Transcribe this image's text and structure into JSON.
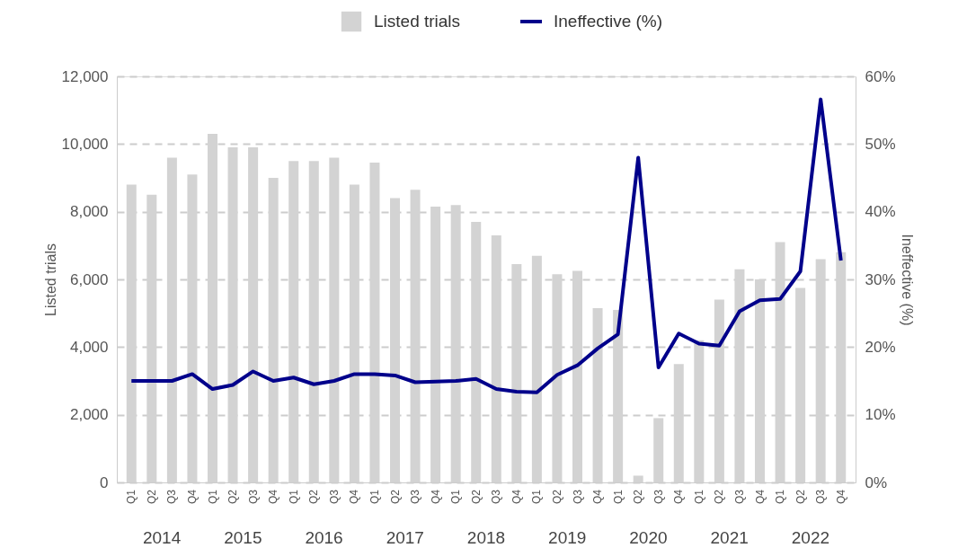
{
  "chart_data": {
    "type": "bar",
    "categories": [
      "Q1",
      "Q2",
      "Q3",
      "Q4",
      "Q1",
      "Q2",
      "Q3",
      "Q4",
      "Q1",
      "Q2",
      "Q3",
      "Q4",
      "Q1",
      "Q2",
      "Q3",
      "Q4",
      "Q1",
      "Q2",
      "Q3",
      "Q4",
      "Q1",
      "Q2",
      "Q3",
      "Q4",
      "Q1",
      "Q2",
      "Q3",
      "Q4",
      "Q1",
      "Q2",
      "Q3",
      "Q4",
      "Q1",
      "Q2",
      "Q3",
      "Q4"
    ],
    "series": [
      {
        "name": "Listed trials",
        "color": "#d3d3d3",
        "values": [
          8800,
          8500,
          9600,
          9100,
          10300,
          9900,
          9900,
          9000,
          9500,
          9500,
          9600,
          8800,
          9450,
          8400,
          8650,
          8150,
          8200,
          7700,
          7300,
          6450,
          6700,
          6150,
          6250,
          5150,
          5100,
          200,
          1900,
          3500,
          4200,
          5400,
          6300,
          6000,
          7100,
          5750,
          6600,
          6800
        ]
      },
      {
        "name": "Ineffective (%)",
        "type": "line",
        "axis": "y2",
        "color": "#00008b",
        "values": [
          15,
          15,
          15,
          16,
          13.8,
          14.4,
          16.4,
          15,
          15.5,
          14.5,
          15,
          16,
          16,
          15.8,
          14.8,
          14.9,
          15,
          15.3,
          13.8,
          13.4,
          13.3,
          15.9,
          17.3,
          19.8,
          21.9,
          48,
          17,
          22,
          20.5,
          20.2,
          25.3,
          26.9,
          27.1,
          31.2,
          56.6,
          32.8
        ]
      }
    ],
    "ylabel": "Listed trials",
    "y2label": "Ineffective (%)",
    "ylim": [
      0,
      12000
    ],
    "yticks": [
      0,
      {
        "value": 2000,
        "label": "2,000"
      },
      {
        "value": 4000,
        "label": "4,000"
      },
      {
        "value": 6000,
        "label": "6,000"
      },
      {
        "value": 8000,
        "label": "8,000"
      },
      {
        "value": 10000,
        "label": "10,000"
      },
      {
        "value": 12000,
        "label": "12,000"
      }
    ],
    "y2lim": [
      0,
      60
    ],
    "y2ticks": [
      {
        "value": 0,
        "label": "0%"
      },
      {
        "value": 10,
        "label": "10%"
      },
      {
        "value": 20,
        "label": "20%"
      },
      {
        "value": 30,
        "label": "30%"
      },
      {
        "value": 40,
        "label": "40%"
      },
      {
        "value": 50,
        "label": "50%"
      },
      {
        "value": 60,
        "label": "60%"
      }
    ],
    "annotations": [
      "2014",
      "2015",
      "2016",
      "2017",
      "2018",
      "2019",
      "2020",
      "2021",
      "2022"
    ],
    "grid": "y",
    "legend": "top",
    "line_style": "solid",
    "marker": "none"
  }
}
